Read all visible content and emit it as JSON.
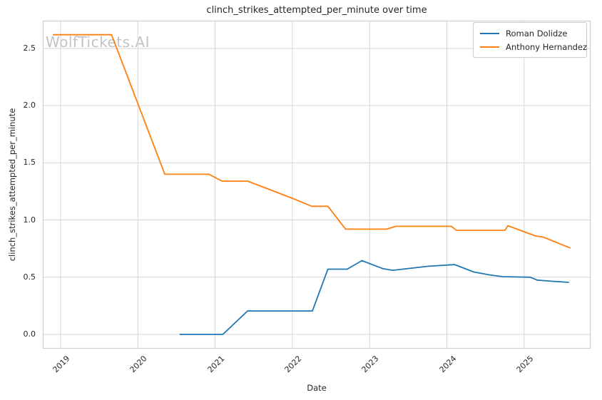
{
  "figure": {
    "watermark": "WolfTickets.AI",
    "background_color": "#ffffff",
    "grid_color": "#d6d6d6",
    "spine_color": "#cccccc",
    "watermark_color": "#c3c3c3"
  },
  "chart_data": {
    "type": "line",
    "title": "clinch_strikes_attempted_per_minute over time",
    "xlabel": "Date",
    "ylabel": "clinch_strikes_attempted_per_minute",
    "x_tick_labels": [
      "2019",
      "2020",
      "2021",
      "2022",
      "2023",
      "2024",
      "2025"
    ],
    "x_tick_values": [
      2019,
      2020,
      2021,
      2022,
      2023,
      2024,
      2025
    ],
    "y_tick_values": [
      0.0,
      0.5,
      1.0,
      1.5,
      2.0,
      2.5
    ],
    "xlim": [
      2018.77,
      2025.86
    ],
    "ylim": [
      -0.125,
      2.743
    ],
    "grid": true,
    "legend_position": "upper-right",
    "series": [
      {
        "name": "Roman Dolidze",
        "color": "#1f77b4",
        "points": [
          [
            2020.54,
            0.0
          ],
          [
            2021.1,
            0.0
          ],
          [
            2021.42,
            0.205
          ],
          [
            2022.26,
            0.205
          ],
          [
            2022.46,
            0.57
          ],
          [
            2022.71,
            0.57
          ],
          [
            2022.9,
            0.645
          ],
          [
            2023.17,
            0.575
          ],
          [
            2023.3,
            0.56
          ],
          [
            2023.75,
            0.595
          ],
          [
            2024.1,
            0.61
          ],
          [
            2024.35,
            0.545
          ],
          [
            2024.55,
            0.52
          ],
          [
            2024.72,
            0.505
          ],
          [
            2025.08,
            0.5
          ],
          [
            2025.17,
            0.475
          ],
          [
            2025.35,
            0.465
          ],
          [
            2025.58,
            0.455
          ]
        ]
      },
      {
        "name": "Anthony Hernandez",
        "color": "#ff7f0e",
        "points": [
          [
            2018.9,
            2.62
          ],
          [
            2019.66,
            2.62
          ],
          [
            2020.35,
            1.4
          ],
          [
            2020.92,
            1.4
          ],
          [
            2021.09,
            1.34
          ],
          [
            2021.42,
            1.34
          ],
          [
            2022.0,
            1.19
          ],
          [
            2022.25,
            1.12
          ],
          [
            2022.46,
            1.12
          ],
          [
            2022.69,
            0.92
          ],
          [
            2023.22,
            0.92
          ],
          [
            2023.34,
            0.945
          ],
          [
            2024.06,
            0.945
          ],
          [
            2024.12,
            0.91
          ],
          [
            2024.75,
            0.91
          ],
          [
            2024.79,
            0.95
          ],
          [
            2025.15,
            0.86
          ],
          [
            2025.25,
            0.85
          ],
          [
            2025.6,
            0.755
          ]
        ]
      }
    ]
  }
}
